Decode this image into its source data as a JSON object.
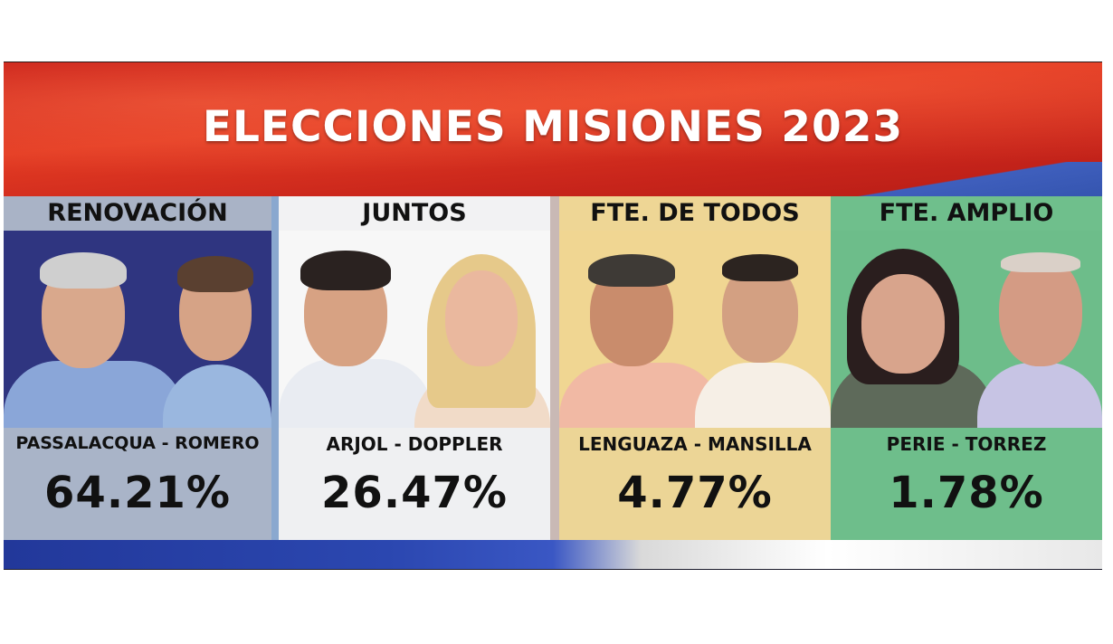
{
  "title": "ELECCIONES MISIONES 2023",
  "panels": [
    {
      "party": "RENOVACIÓN",
      "candidates": "PASSALACQUA - ROMERO",
      "percent": "64.21%",
      "percent_value": 64.21,
      "colors": {
        "head_bg": "#a9b3c6",
        "photo_bg": "#2f3580",
        "bottom_bg": "#a9b4c8"
      }
    },
    {
      "party": "JUNTOS",
      "candidates": "ARJOL - DOPPLER",
      "percent": "26.47%",
      "percent_value": 26.47,
      "colors": {
        "head_bg": "#f2f2f3",
        "photo_bg": "#f7f7f7",
        "bottom_bg": "#eff0f2"
      }
    },
    {
      "party": "FTE. DE TODOS",
      "candidates": "LENGUAZA - MANSILLA",
      "percent": "4.77%",
      "percent_value": 4.77,
      "colors": {
        "head_bg": "#eed695",
        "photo_bg": "#f0d692",
        "bottom_bg": "#ecd596"
      }
    },
    {
      "party": "FTE. AMPLIO",
      "candidates": "PERIE - TORREZ",
      "percent": "1.78%",
      "percent_value": 1.78,
      "colors": {
        "head_bg": "#6fbf8c",
        "photo_bg": "#6dbd8a",
        "bottom_bg": "#6ebe8b"
      }
    }
  ]
}
